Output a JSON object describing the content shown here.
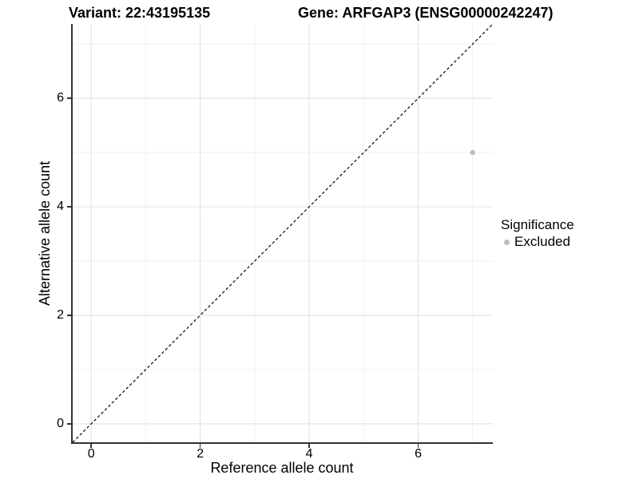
{
  "titles": {
    "variant": "Variant: 22:43195135",
    "gene": "Gene: ARFGAP3 (ENSG00000242247)"
  },
  "colors": {
    "background": "#ffffff",
    "axis_line": "#333333",
    "tick": "#333333",
    "grid_major": "#e4e4e4",
    "grid_minor": "#efefef",
    "reference_line": "#000000",
    "point_excluded": "#bebebe",
    "text": "#000000"
  },
  "legend": {
    "title": "Significance",
    "entries": [
      {
        "label": "Excluded",
        "color": "#bebebe"
      }
    ]
  },
  "chart_data": {
    "type": "scatter",
    "title_left": "Variant: 22:43195135",
    "title_right": "Gene: ARFGAP3 (ENSG00000242247)",
    "xlabel": "Reference allele count",
    "ylabel": "Alternative allele count",
    "xlim": [
      -0.34,
      7.37
    ],
    "ylim": [
      -0.34,
      7.37
    ],
    "x_major_ticks": [
      0,
      2,
      4,
      6
    ],
    "y_major_ticks": [
      0,
      2,
      4,
      6
    ],
    "x_minor_gridlines": [
      1,
      3,
      5,
      7
    ],
    "y_minor_gridlines": [
      1,
      3,
      5,
      7
    ],
    "grid": true,
    "legend_position": "right",
    "legend_title": "Significance",
    "series": [
      {
        "name": "Excluded",
        "color": "#bebebe",
        "points": [
          {
            "x": 7,
            "y": 5
          }
        ]
      }
    ],
    "reference_line": {
      "kind": "identity y=x",
      "style": "dashed",
      "color": "#000000"
    }
  }
}
